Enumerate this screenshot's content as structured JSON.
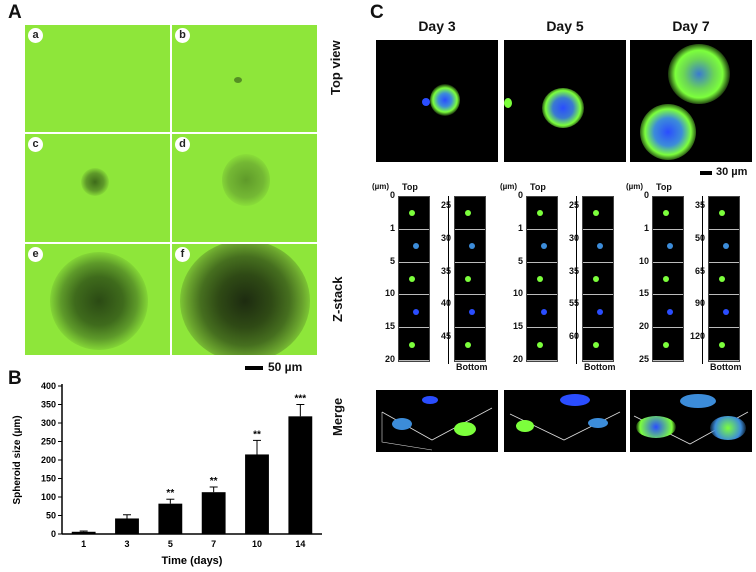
{
  "panel_a": {
    "letter": "A",
    "tiles": [
      "a",
      "b",
      "c",
      "d",
      "e",
      "f"
    ],
    "scale_label": "50 µm"
  },
  "panel_b": {
    "letter": "B"
  },
  "panel_c": {
    "letter": "C",
    "days": [
      "Day 3",
      "Day 5",
      "Day 7"
    ],
    "row_top": "Top view",
    "row_z": "Z-stack",
    "row_merge": "Merge",
    "scale_label": "30 µm",
    "unit": "(µm)",
    "top": "Top",
    "bottom": "Bottom",
    "zstacks": [
      {
        "left": [
          "0",
          "1",
          "5",
          "10",
          "15",
          "20"
        ],
        "right": [
          "25",
          "30",
          "35",
          "40",
          "45"
        ]
      },
      {
        "left": [
          "0",
          "1",
          "5",
          "10",
          "15",
          "20"
        ],
        "right": [
          "25",
          "30",
          "35",
          "55",
          "60"
        ]
      },
      {
        "left": [
          "0",
          "1",
          "10",
          "15",
          "20",
          "25"
        ],
        "right": [
          "35",
          "50",
          "65",
          "90",
          "120"
        ]
      }
    ]
  },
  "chart_data": {
    "type": "bar",
    "categories": [
      "1",
      "3",
      "5",
      "7",
      "10",
      "14"
    ],
    "values": [
      6,
      42,
      82,
      113,
      215,
      318
    ],
    "errors": [
      2,
      10,
      12,
      14,
      38,
      32
    ],
    "significance": [
      "",
      "",
      "**",
      "**",
      "**",
      "***"
    ],
    "xlabel": "Time (days)",
    "ylabel": "Spheroid size (µm)",
    "ylim": [
      0,
      400
    ],
    "yticks": [
      "0",
      "50",
      "100",
      "150",
      "200",
      "250",
      "300",
      "350",
      "400"
    ],
    "grid": false,
    "legend": "none"
  },
  "colors": {
    "brightfield": "#8ee63a",
    "fluor_green": "#7cff3c",
    "fluor_blue": "#2a4dff"
  }
}
